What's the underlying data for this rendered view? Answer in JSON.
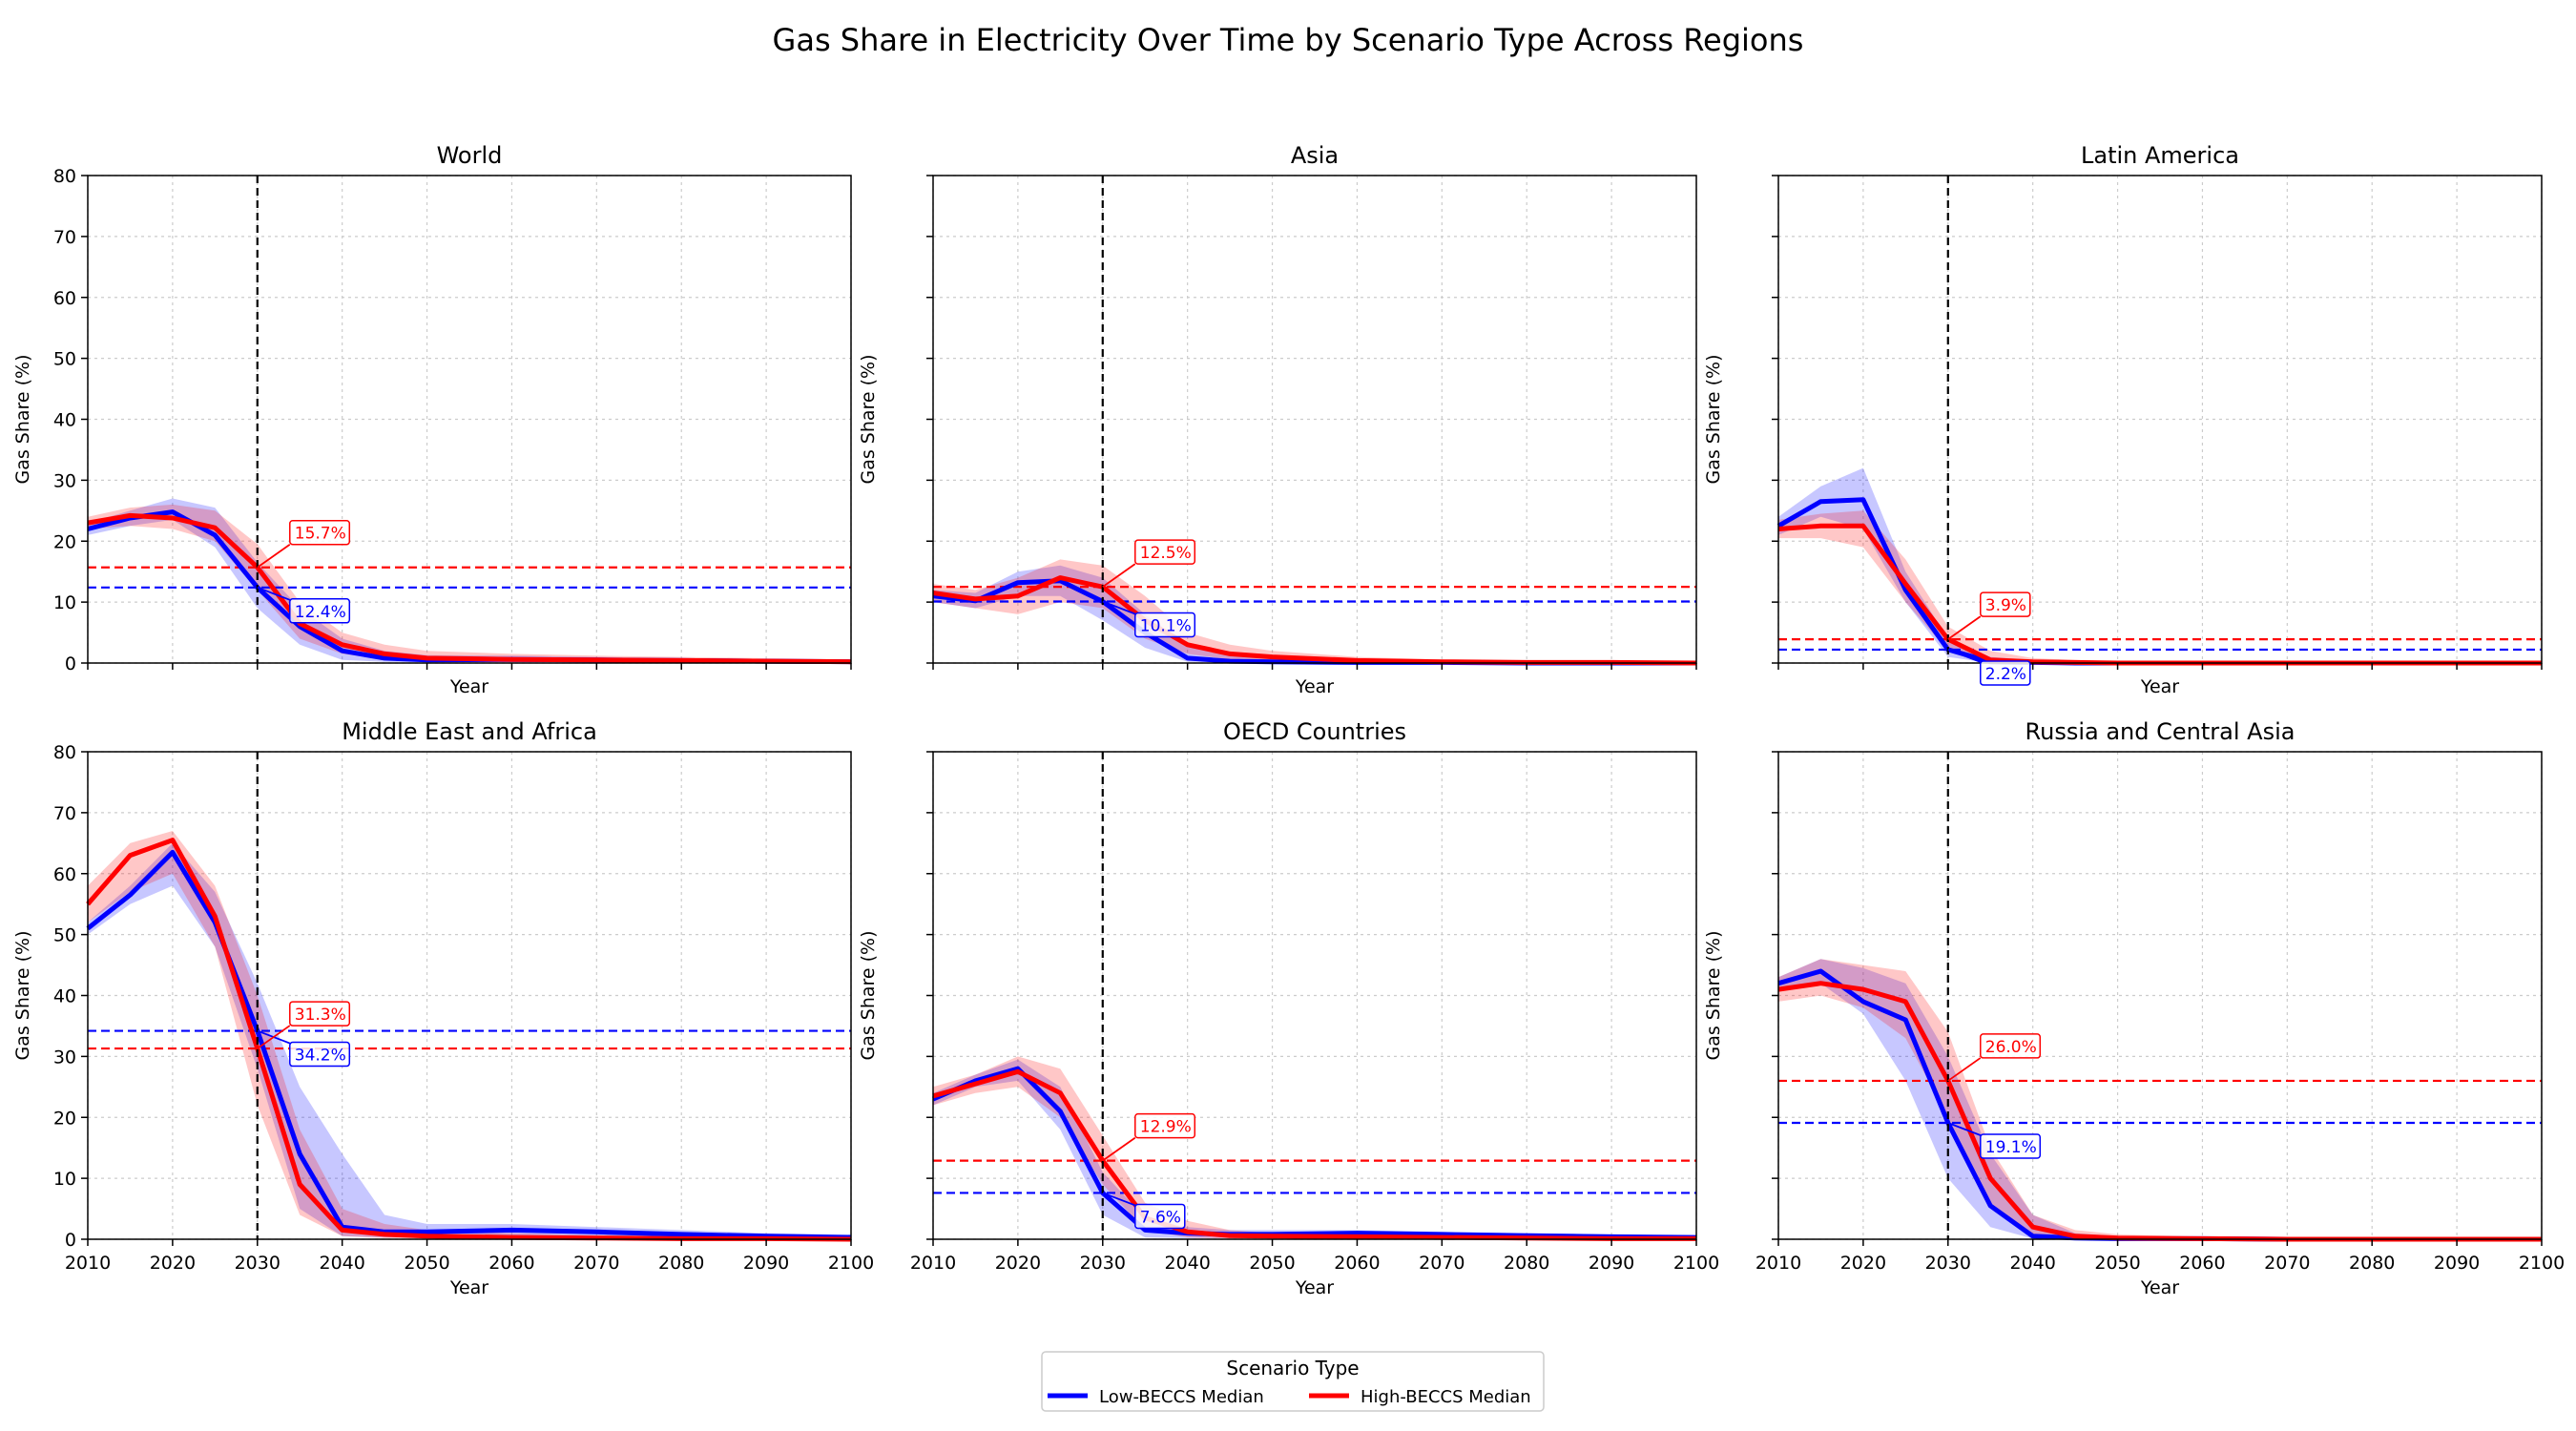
{
  "figure": {
    "title": "Gas Share in Electricity Over Time by Scenario Type Across Regions",
    "legend": {
      "title": "Scenario Type",
      "entries": [
        {
          "label": "Low-BECCS Median",
          "color": "#0000ff"
        },
        {
          "label": "High-BECCS Median",
          "color": "#ff0000"
        }
      ]
    }
  },
  "chart_data": [
    {
      "type": "line",
      "title": "World",
      "xlabel": "Year",
      "ylabel": "Gas Share (%)",
      "xlim": [
        2010,
        2100
      ],
      "ylim": [
        0,
        80
      ],
      "x": [
        2010,
        2015,
        2020,
        2025,
        2030,
        2035,
        2040,
        2045,
        2050,
        2060,
        2070,
        2080,
        2090,
        2100
      ],
      "reference_year": 2030,
      "series": [
        {
          "name": "Low-BECCS Median",
          "color": "#0000ff",
          "values": [
            22,
            23.8,
            24.8,
            21,
            12.4,
            6,
            2,
            0.8,
            0.5,
            0.6,
            0.5,
            0.4,
            0.3,
            0.2
          ],
          "band_low": [
            21,
            22.5,
            23.5,
            19,
            9,
            3,
            0.5,
            0.2,
            0.1,
            0.1,
            0.1,
            0.1,
            0.1,
            0
          ],
          "band_high": [
            23,
            25,
            27,
            25.5,
            16.5,
            9,
            4,
            2,
            1.3,
            1.2,
            1,
            0.8,
            0.6,
            0.5
          ],
          "ref_value": 12.4,
          "ref_label": "12.4%"
        },
        {
          "name": "High-BECCS Median",
          "color": "#ff0000",
          "values": [
            23,
            24.2,
            23.8,
            22.2,
            15.7,
            6.5,
            3,
            1.5,
            0.8,
            0.6,
            0.5,
            0.4,
            0.3,
            0.2
          ],
          "band_low": [
            22,
            22.5,
            22,
            20,
            12,
            4,
            1.5,
            0.6,
            0.3,
            0.2,
            0.1,
            0.1,
            0.1,
            0
          ],
          "band_high": [
            24,
            25.5,
            26,
            25,
            19.5,
            10,
            5,
            3,
            2,
            1.5,
            1.2,
            1,
            0.8,
            0.6
          ],
          "ref_value": 15.7,
          "ref_label": "15.7%"
        }
      ]
    },
    {
      "type": "line",
      "title": "Asia",
      "xlabel": "Year",
      "ylabel": "Gas Share (%)",
      "xlim": [
        2010,
        2100
      ],
      "ylim": [
        0,
        80
      ],
      "x": [
        2010,
        2015,
        2020,
        2025,
        2030,
        2035,
        2040,
        2045,
        2050,
        2060,
        2070,
        2080,
        2090,
        2100
      ],
      "reference_year": 2030,
      "series": [
        {
          "name": "Low-BECCS Median",
          "color": "#0000ff",
          "values": [
            11,
            10.2,
            13.2,
            13.5,
            10.1,
            5,
            0.8,
            0.3,
            0.2,
            0.1,
            0.1,
            0,
            0,
            0
          ],
          "band_low": [
            10,
            9,
            11,
            11,
            7,
            2.5,
            0.2,
            0.1,
            0,
            0,
            0,
            0,
            0,
            0
          ],
          "band_high": [
            12,
            11.5,
            15,
            16,
            14,
            8,
            3,
            1.5,
            1,
            0.5,
            0.3,
            0.2,
            0.1,
            0.1
          ],
          "ref_value": 10.1,
          "ref_label": "10.1%"
        },
        {
          "name": "High-BECCS Median",
          "color": "#ff0000",
          "values": [
            11.5,
            10.5,
            11,
            14,
            12.5,
            7,
            3,
            1.5,
            1,
            0.4,
            0.2,
            0.1,
            0.1,
            0
          ],
          "band_low": [
            10,
            9,
            8,
            10,
            9,
            4,
            1.5,
            0.6,
            0.3,
            0.1,
            0,
            0,
            0,
            0
          ],
          "band_high": [
            13,
            12,
            14,
            17,
            16,
            11,
            5,
            3,
            2,
            1,
            0.6,
            0.4,
            0.3,
            0.2
          ],
          "ref_value": 12.5,
          "ref_label": "12.5%"
        }
      ]
    },
    {
      "type": "line",
      "title": "Latin America",
      "xlabel": "Year",
      "ylabel": "Gas Share (%)",
      "xlim": [
        2010,
        2100
      ],
      "ylim": [
        0,
        80
      ],
      "x": [
        2010,
        2015,
        2020,
        2025,
        2030,
        2035,
        2040,
        2045,
        2050,
        2060,
        2070,
        2080,
        2090,
        2100
      ],
      "reference_year": 2030,
      "series": [
        {
          "name": "Low-BECCS Median",
          "color": "#0000ff",
          "values": [
            22.5,
            26.5,
            26.8,
            12,
            2.2,
            0.2,
            0.1,
            0,
            0,
            0,
            0,
            0,
            0,
            0
          ],
          "band_low": [
            21,
            24,
            22,
            10,
            1,
            0,
            0,
            0,
            0,
            0,
            0,
            0,
            0,
            0
          ],
          "band_high": [
            24,
            29,
            32,
            15,
            4,
            1,
            0.5,
            0.3,
            0.2,
            0.1,
            0.1,
            0.1,
            0,
            0
          ],
          "ref_value": 2.2,
          "ref_label": "2.2%"
        },
        {
          "name": "High-BECCS Median",
          "color": "#ff0000",
          "values": [
            22,
            22.5,
            22.5,
            13,
            3.9,
            0.5,
            0.2,
            0.1,
            0,
            0,
            0,
            0,
            0,
            0
          ],
          "band_low": [
            20.5,
            20.5,
            19,
            10,
            2,
            0.2,
            0,
            0,
            0,
            0,
            0,
            0,
            0,
            0
          ],
          "band_high": [
            23.5,
            24.5,
            25,
            17,
            6,
            2,
            0.8,
            0.5,
            0.3,
            0.2,
            0.1,
            0.1,
            0,
            0
          ],
          "ref_value": 3.9,
          "ref_label": "3.9%"
        }
      ]
    },
    {
      "type": "line",
      "title": "Middle East and Africa",
      "xlabel": "Year",
      "ylabel": "Gas Share (%)",
      "xlim": [
        2010,
        2100
      ],
      "ylim": [
        0,
        80
      ],
      "x": [
        2010,
        2015,
        2020,
        2025,
        2030,
        2035,
        2040,
        2045,
        2050,
        2060,
        2070,
        2080,
        2090,
        2100
      ],
      "reference_year": 2030,
      "series": [
        {
          "name": "Low-BECCS Median",
          "color": "#0000ff",
          "values": [
            51,
            56.5,
            63.5,
            52,
            34.2,
            14,
            2,
            1.2,
            1.2,
            1.5,
            1.2,
            0.8,
            0.5,
            0.3
          ],
          "band_low": [
            50,
            55,
            58,
            48,
            28,
            5,
            0.5,
            0.3,
            0.3,
            0.4,
            0.3,
            0.2,
            0.1,
            0.1
          ],
          "band_high": [
            52,
            58,
            65,
            57,
            42,
            25,
            14,
            4,
            2.5,
            2.5,
            2,
            1.5,
            1,
            0.8
          ],
          "ref_value": 34.2,
          "ref_label": "34.2%"
        },
        {
          "name": "High-BECCS Median",
          "color": "#ff0000",
          "values": [
            55,
            63,
            65.5,
            53,
            31.3,
            9,
            1.5,
            0.8,
            0.5,
            0.3,
            0.2,
            0.1,
            0.1,
            0
          ],
          "band_low": [
            52,
            57,
            60,
            48,
            22,
            4,
            0.5,
            0.2,
            0.1,
            0,
            0,
            0,
            0,
            0
          ],
          "band_high": [
            58,
            65,
            67,
            58,
            40,
            18,
            5,
            2.5,
            1.5,
            1,
            0.7,
            0.5,
            0.3,
            0.2
          ],
          "ref_value": 31.3,
          "ref_label": "31.3%"
        }
      ]
    },
    {
      "type": "line",
      "title": "OECD Countries",
      "xlabel": "Year",
      "ylabel": "Gas Share (%)",
      "xlim": [
        2010,
        2100
      ],
      "ylim": [
        0,
        80
      ],
      "x": [
        2010,
        2015,
        2020,
        2025,
        2030,
        2035,
        2040,
        2045,
        2050,
        2060,
        2070,
        2080,
        2090,
        2100
      ],
      "reference_year": 2030,
      "series": [
        {
          "name": "Low-BECCS Median",
          "color": "#0000ff",
          "values": [
            23,
            26,
            28,
            21,
            7.6,
            1.5,
            1,
            0.8,
            0.8,
            1,
            0.8,
            0.6,
            0.4,
            0.3
          ],
          "band_low": [
            22,
            25,
            26,
            18,
            4,
            0.3,
            0.2,
            0.2,
            0.2,
            0.2,
            0.2,
            0.1,
            0.1,
            0.1
          ],
          "band_high": [
            24,
            27,
            29.5,
            25,
            11,
            3.5,
            2,
            1.5,
            1.5,
            1.5,
            1.2,
            1,
            0.8,
            0.6
          ],
          "ref_value": 7.6,
          "ref_label": "7.6%"
        },
        {
          "name": "High-BECCS Median",
          "color": "#ff0000",
          "values": [
            23.5,
            25.5,
            27.5,
            24,
            12.9,
            3.5,
            1.2,
            0.6,
            0.5,
            0.4,
            0.3,
            0.2,
            0.1,
            0.1
          ],
          "band_low": [
            22,
            24,
            25,
            20,
            9,
            1.5,
            0.3,
            0.1,
            0.1,
            0.1,
            0,
            0,
            0,
            0
          ],
          "band_high": [
            25,
            27,
            30,
            28,
            17,
            6,
            3,
            1.5,
            1,
            0.8,
            0.6,
            0.4,
            0.3,
            0.2
          ],
          "ref_value": 12.9,
          "ref_label": "12.9%"
        }
      ]
    },
    {
      "type": "line",
      "title": "Russia and Central Asia",
      "xlabel": "Year",
      "ylabel": "Gas Share (%)",
      "xlim": [
        2010,
        2100
      ],
      "ylim": [
        0,
        80
      ],
      "x": [
        2010,
        2015,
        2020,
        2025,
        2030,
        2035,
        2040,
        2045,
        2050,
        2060,
        2070,
        2080,
        2090,
        2100
      ],
      "reference_year": 2030,
      "series": [
        {
          "name": "Low-BECCS Median",
          "color": "#0000ff",
          "values": [
            42,
            44,
            39,
            36,
            19.1,
            5.5,
            0.5,
            0.2,
            0.1,
            0.1,
            0,
            0,
            0,
            0
          ],
          "band_low": [
            41,
            42,
            37,
            26,
            10,
            2,
            0.1,
            0,
            0,
            0,
            0,
            0,
            0,
            0
          ],
          "band_high": [
            43,
            46,
            44.5,
            42,
            30,
            14,
            4,
            1,
            0.5,
            0.3,
            0.2,
            0.1,
            0.1,
            0
          ],
          "ref_value": 19.1,
          "ref_label": "19.1%"
        },
        {
          "name": "High-BECCS Median",
          "color": "#ff0000",
          "values": [
            41,
            42,
            41,
            39,
            26.0,
            10,
            2,
            0.5,
            0.2,
            0.1,
            0,
            0,
            0,
            0
          ],
          "band_low": [
            39,
            40,
            38,
            33,
            20,
            6,
            0.8,
            0.2,
            0,
            0,
            0,
            0,
            0,
            0
          ],
          "band_high": [
            43,
            46,
            45,
            44,
            34,
            15,
            4,
            1.5,
            0.8,
            0.4,
            0.2,
            0.1,
            0.1,
            0
          ],
          "ref_value": 26.0,
          "ref_label": "26.0%"
        }
      ]
    }
  ]
}
